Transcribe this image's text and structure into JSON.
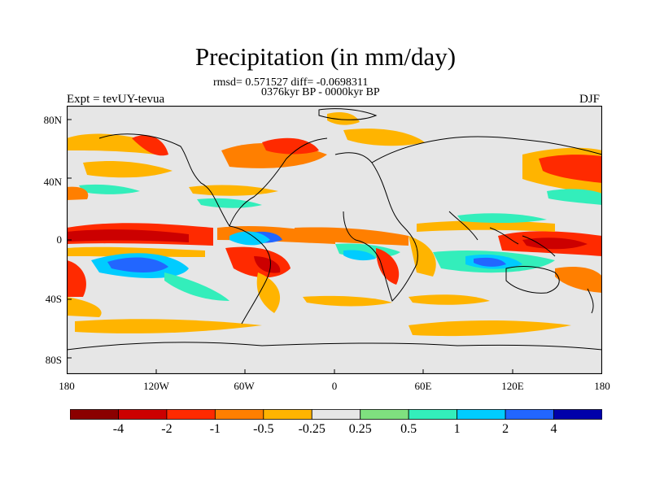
{
  "title": "Precipitation (in mm/day)",
  "stats": "rmsd= 0.571527 diff= -0.0698311",
  "period": "0376kyr BP - 0000kyr BP",
  "experiment": "Expt = tevUY-tevua",
  "season": "DJF",
  "map": {
    "land_color": "#e6e6e6",
    "y_ticks": [
      "80N",
      "40N",
      "0",
      "40S",
      "80S"
    ],
    "x_ticks": [
      "180",
      "120W",
      "60W",
      "0",
      "60E",
      "120E",
      "180"
    ]
  },
  "colorbar": {
    "colors": [
      "#8b0000",
      "#cc0000",
      "#ff2a00",
      "#ff7f00",
      "#ffb400",
      "#e6e6e6",
      "#7fe07f",
      "#33eebb",
      "#00ccff",
      "#2266ff",
      "#0000aa"
    ],
    "labels": [
      "-4",
      "-2",
      "-1",
      "-0.5",
      "-0.25",
      "0.25",
      "0.5",
      "1",
      "2",
      "4"
    ]
  }
}
